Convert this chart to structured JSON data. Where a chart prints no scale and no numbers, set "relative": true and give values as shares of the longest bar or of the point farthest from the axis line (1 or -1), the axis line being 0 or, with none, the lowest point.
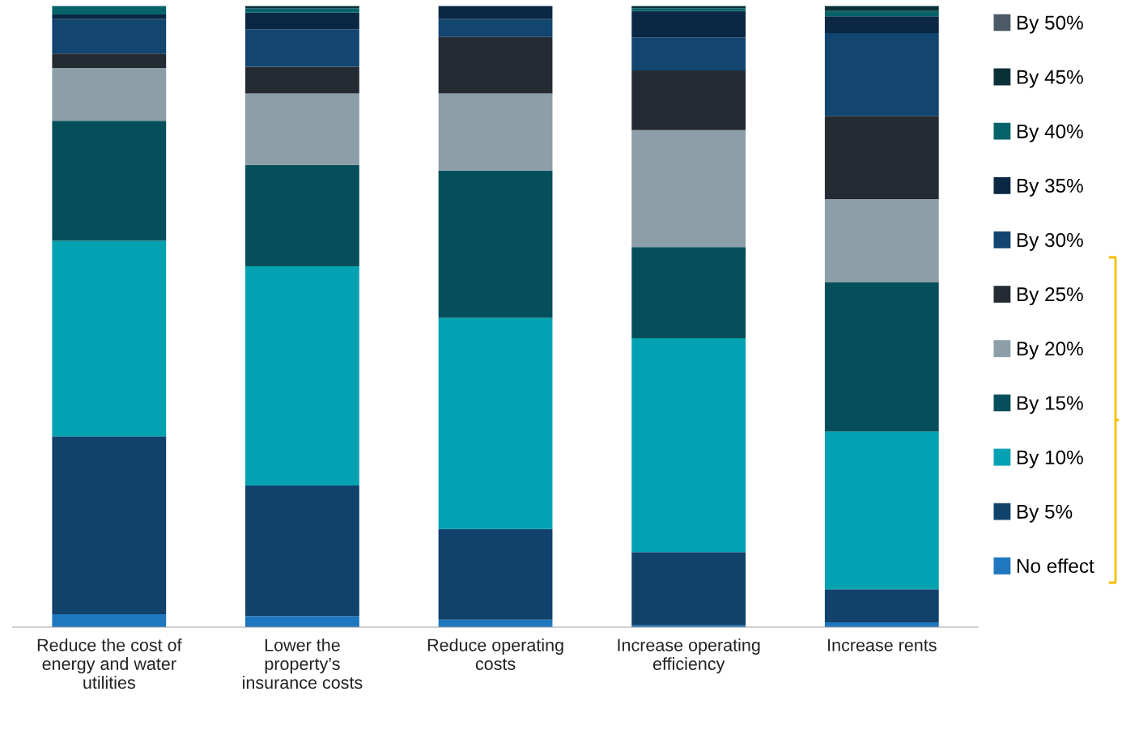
{
  "chart_data": {
    "type": "bar",
    "stacked": true,
    "relative": true,
    "legend": "right",
    "grid": false,
    "categories": [
      "Reduce the cost of\nenergy and water\nutilities",
      "Lower the\nproperty’s\ninsurance costs",
      "Reduce operating\ncosts",
      "Increase operating\nefficiency",
      "Increase rents"
    ],
    "series": [
      {
        "name": "No effect",
        "color": "#1f77c0",
        "values": [
          0.021,
          0.018,
          0.012,
          0.003,
          0.008
        ]
      },
      {
        "name": "By 5%",
        "color": "#11426b",
        "values": [
          0.286,
          0.21,
          0.146,
          0.118,
          0.053
        ]
      },
      {
        "name": "By 10%",
        "color": "#03a2b2",
        "values": [
          0.315,
          0.353,
          0.34,
          0.344,
          0.254
        ]
      },
      {
        "name": "By 15%",
        "color": "#054f5c",
        "values": [
          0.193,
          0.163,
          0.237,
          0.147,
          0.24
        ]
      },
      {
        "name": "By 20%",
        "color": "#8c9ea8",
        "values": [
          0.085,
          0.115,
          0.124,
          0.188,
          0.134
        ]
      },
      {
        "name": "By 25%",
        "color": "#252b33",
        "values": [
          0.023,
          0.043,
          0.091,
          0.096,
          0.134
        ]
      },
      {
        "name": "By 30%",
        "color": "#124570",
        "values": [
          0.056,
          0.06,
          0.029,
          0.053,
          0.133
        ]
      },
      {
        "name": "By 35%",
        "color": "#0a2744",
        "values": [
          0.007,
          0.027,
          0.021,
          0.043,
          0.027
        ]
      },
      {
        "name": "By 40%",
        "color": "#06636a",
        "values": [
          0.014,
          0.007,
          0,
          0.004,
          0.009
        ]
      },
      {
        "name": "By 45%",
        "color": "#0a3038",
        "values": [
          0,
          0.004,
          0,
          0.004,
          0.008
        ]
      },
      {
        "name": "By 50%",
        "color": "#4b5a66",
        "values": [
          0,
          0,
          0,
          0,
          0
        ]
      }
    ]
  }
}
